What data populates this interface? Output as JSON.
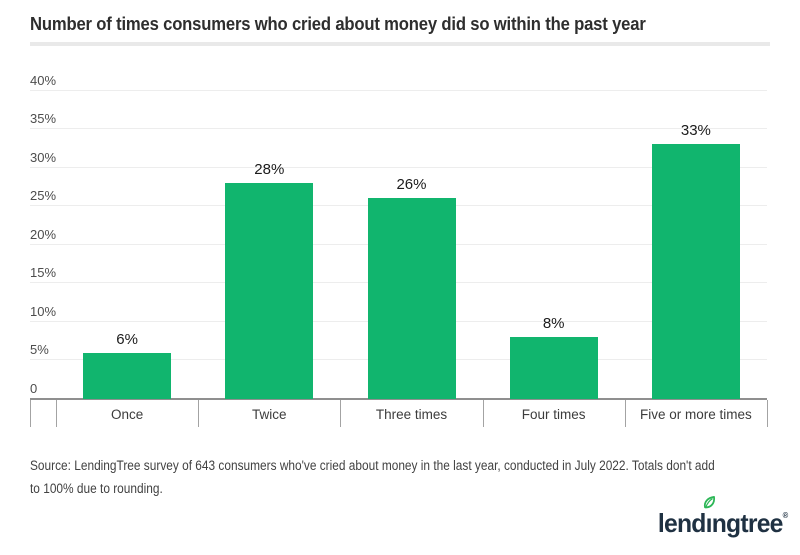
{
  "title": "Number of times consumers who cried about money did so within the past year",
  "chart_data": {
    "type": "bar",
    "title": "Number of times consumers who cried about money did so within the past year",
    "categories": [
      "Once",
      "Twice",
      "Three times",
      "Four times",
      "Five or more times"
    ],
    "values": [
      6,
      28,
      26,
      8,
      33
    ],
    "value_labels": [
      "6%",
      "28%",
      "26%",
      "8%",
      "33%"
    ],
    "xlabel": "",
    "ylabel": "",
    "ylim": [
      0,
      40
    ],
    "y_ticks": [
      {
        "value": 0,
        "label": "0"
      },
      {
        "value": 5,
        "label": "5%"
      },
      {
        "value": 10,
        "label": "10%"
      },
      {
        "value": 15,
        "label": "15%"
      },
      {
        "value": 20,
        "label": "20%"
      },
      {
        "value": 25,
        "label": "25%"
      },
      {
        "value": 30,
        "label": "30%"
      },
      {
        "value": 35,
        "label": "35%"
      },
      {
        "value": 40,
        "label": "40%"
      }
    ],
    "grid": true,
    "legend": false,
    "bar_color": "#11b56e"
  },
  "source": {
    "line1": "Source: LendingTree survey of 643 consumers who've cried about money in the last year, conducted in July 2022. Totals don't add",
    "line2": "to 100% due to rounding."
  },
  "logo": {
    "text": "lendingtree",
    "pre": "lend",
    "dotless_i": "ı",
    "post": "ngtree",
    "reg": "®"
  },
  "colors": {
    "bar": "#11b56e",
    "leaf": "#2db757",
    "logo_text": "#1f3142",
    "title_text": "#2e2e2e",
    "grid": "#ededed",
    "axis": "#8f8f8f",
    "divider": "#e9e9e9"
  }
}
